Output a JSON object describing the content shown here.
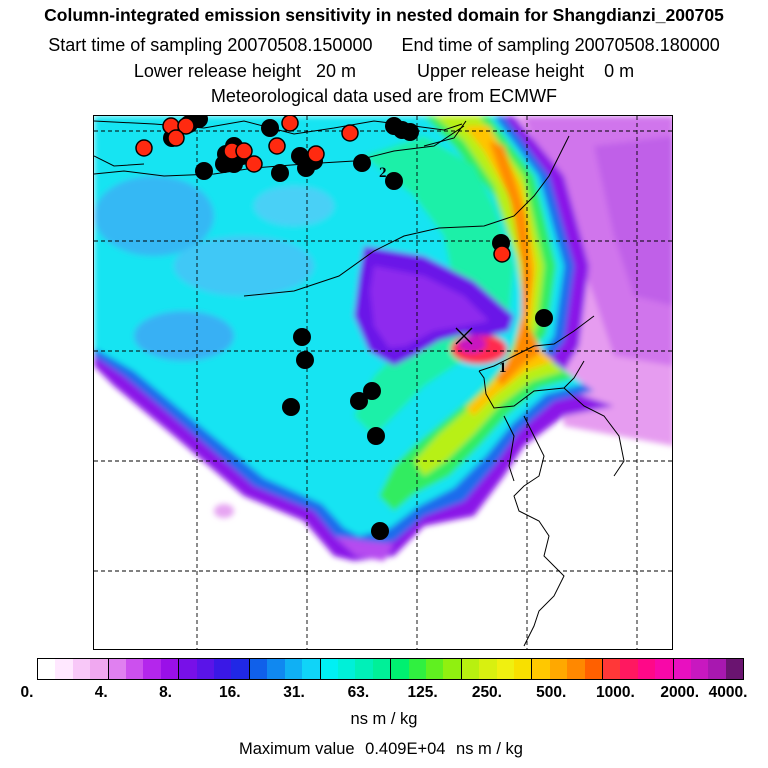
{
  "title": "Column-integrated emission sensitivity in nested domain for Shangdianzi_200705",
  "sampling": {
    "start_label": "Start time of sampling",
    "start_value": "20070508.150000",
    "end_label": "End time of sampling",
    "end_value": "20070508.180000"
  },
  "release": {
    "lower_label": "Lower release height",
    "lower_value": "20 m",
    "upper_label": "Upper release height",
    "upper_value": "0 m"
  },
  "met_note": "Meteorological data used are from ECMWF",
  "colorbar": {
    "ticks": [
      "0.",
      "4.",
      "8.",
      "16.",
      "31.",
      "63.",
      "125.",
      "250.",
      "500.",
      "1000.",
      "2000.",
      "4000."
    ],
    "colors": [
      "#ffffff",
      "#ffe8ff",
      "#f8c8f8",
      "#f0a8f0",
      "#e080f0",
      "#cc50ee",
      "#b426ec",
      "#9a10e8",
      "#7810e8",
      "#5a14e8",
      "#3a18e6",
      "#2028e6",
      "#1060ea",
      "#1088f0",
      "#10b0f4",
      "#10d4f8",
      "#00f0f4",
      "#00f0d8",
      "#00f0b8",
      "#00f098",
      "#00f070",
      "#30f040",
      "#60f020",
      "#90f010",
      "#b8f010",
      "#d8f010",
      "#f0f010",
      "#f8e000",
      "#ffc800",
      "#ffa800",
      "#ff8800",
      "#ff6000",
      "#ff3838",
      "#ff1860",
      "#ff0888",
      "#f808a8",
      "#e810c0",
      "#c818c0",
      "#a818b0",
      "#6a1470"
    ],
    "units": "ns m / kg"
  },
  "maximum": {
    "label": "Maximum value",
    "value": "0.409E+04",
    "units": "ns m / kg"
  },
  "map": {
    "markers": [
      "1",
      "2"
    ]
  }
}
